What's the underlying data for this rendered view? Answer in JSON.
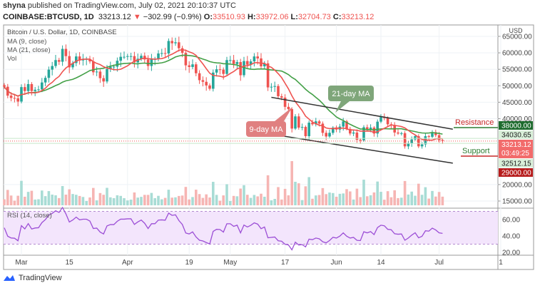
{
  "header": {
    "publisher": "shyna",
    "published_text": "published on TradingView.com, July 02, 2021 20:10:37 UTC",
    "symbol": "COINBASE:BTCUSD, 1D",
    "last": "33213.12",
    "change": "−302.99 (−0.9%)",
    "o_label": "O:",
    "o": "33510.93",
    "h_label": "H:",
    "h": "33972.06",
    "l_label": "L:",
    "l": "32704.73",
    "c_label": "C:",
    "c": "33213.12"
  },
  "legend": {
    "title": "Bitcoin / U.S. Dollar, 1D, COINBASE",
    "ma9": "MA (9, close)",
    "ma21": "MA (21, close)",
    "vol": "Vol",
    "rsi": "RSI (14, close)"
  },
  "annotations": {
    "ma21_label": "21-day MA",
    "ma9_label": "9-day MA",
    "resistance": "Resistance",
    "support": "Support"
  },
  "price_tags": {
    "resistance": "38000.00",
    "ma21": "34030.65",
    "last": "33213.12",
    "countdown": "03:49:25",
    "ma9": "32512.15",
    "support": "29000.00"
  },
  "colors": {
    "up": "#26a69a",
    "down": "#ef5350",
    "ma9": "#ef5350",
    "ma21": "#43a047",
    "rsi": "#9c4fd6",
    "rsi_band": "#f3e5fc",
    "resistance_tag": "#1e6b2e",
    "support_tag": "#b71c1c"
  },
  "footer": {
    "brand": "TradingView",
    "currency": "USD"
  },
  "chart_data": {
    "type": "candlestick",
    "x_start": "2021-02-24",
    "x_end": "2021-07-02",
    "close": [
      49700,
      47000,
      46300,
      46200,
      45200,
      49600,
      48400,
      50500,
      48400,
      48800,
      48900,
      51000,
      52400,
      54900,
      56000,
      57800,
      57300,
      61200,
      59000,
      55600,
      56900,
      58900,
      57700,
      58100,
      58100,
      57400,
      54100,
      54300,
      52300,
      51300,
      55100,
      55800,
      55800,
      57600,
      58800,
      58800,
      59000,
      59000,
      57100,
      58200,
      59100,
      58000,
      56000,
      58100,
      58100,
      59800,
      59900,
      59800,
      63600,
      62900,
      63200,
      61400,
      60000,
      56200,
      55700,
      56500,
      53800,
      51700,
      51200,
      50100,
      49100,
      54000,
      55000,
      54900,
      53600,
      57800,
      57800,
      56600,
      57200,
      53200,
      57500,
      56400,
      57400,
      58900,
      58300,
      55900,
      56800,
      49500,
      49700,
      49900,
      46800,
      46400,
      43600,
      42900,
      37000,
      40700,
      37300,
      37500,
      34700,
      38800,
      38300,
      39200,
      38500,
      35700,
      34600,
      35700,
      37300,
      36700,
      37600,
      39200,
      36900,
      35500,
      35800,
      33600,
      33400,
      37400,
      36700,
      37300,
      35500,
      39100,
      40500,
      40200,
      38300,
      38100,
      35800,
      35500,
      35600,
      31600,
      32500,
      33700,
      34700,
      31600,
      32200,
      34700,
      34500,
      35900,
      35000,
      33500,
      33213.12
    ],
    "y_ticks": [
      "65000.00",
      "60000.00",
      "55000.00",
      "50000.00",
      "45000.00",
      "40000.00",
      "20000.00",
      "15000.00"
    ],
    "y_tick_values": [
      65000,
      60000,
      55000,
      50000,
      45000,
      40000,
      20000,
      15000
    ],
    "x_ticks": [
      "Mar",
      "15",
      "Apr",
      "19",
      "May",
      "17",
      "Jun",
      "14",
      "Jul",
      "1"
    ],
    "x_tick_dates": [
      "2021-03-01",
      "2021-03-15",
      "2021-04-01",
      "2021-04-19",
      "2021-05-01",
      "2021-05-17",
      "2021-06-01",
      "2021-06-14",
      "2021-07-01",
      "2021-07-19"
    ],
    "rsi_ticks": [
      "60.00",
      "40.00",
      "20.00"
    ],
    "rsi_tick_values": [
      60,
      40,
      20
    ],
    "rsi_bands": [
      30,
      70
    ],
    "channel": {
      "upper": [
        [
          "2021-05-13",
          46500
        ],
        [
          "2021-07-05",
          36800
        ]
      ],
      "lower": [
        [
          "2021-05-10",
          35800
        ],
        [
          "2021-07-05",
          26500
        ]
      ]
    },
    "levels": {
      "resistance": 38000,
      "support": 29000
    }
  }
}
